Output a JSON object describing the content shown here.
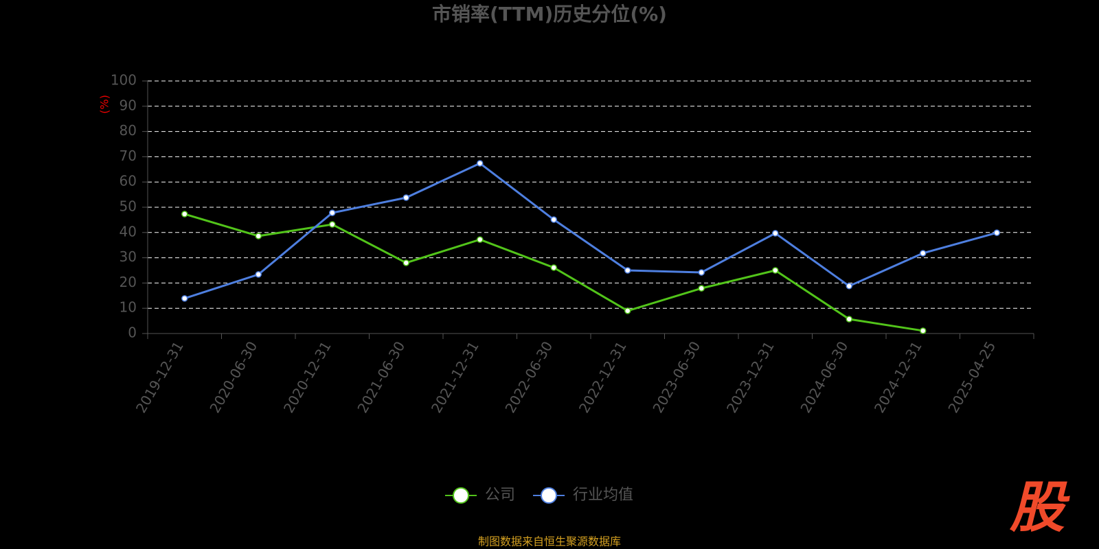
{
  "chart_data": {
    "type": "line",
    "title": "市销率(TTM)历史分位(%)",
    "y_label": "(%)",
    "categories": [
      "2019-12-31",
      "2020-06-30",
      "2020-12-31",
      "2021-06-30",
      "2021-12-31",
      "2022-06-30",
      "2022-12-31",
      "2023-06-30",
      "2023-12-31",
      "2024-06-30",
      "2024-12-31",
      "2025-04-25"
    ],
    "series": [
      {
        "name": "公司",
        "color": "#52c41a",
        "values": [
          47.3,
          38.6,
          43.2,
          28.0,
          37.2,
          26.1,
          9.0,
          17.9,
          25.0,
          5.7,
          1.1,
          null
        ]
      },
      {
        "name": "行业均值",
        "color": "#4e7fe0",
        "values": [
          13.9,
          23.4,
          47.8,
          53.8,
          67.4,
          45.1,
          25.0,
          24.2,
          39.7,
          18.8,
          31.8,
          39.9
        ]
      }
    ],
    "ylim": [
      0,
      100
    ],
    "yticks": [
      0,
      10,
      20,
      30,
      40,
      50,
      60,
      70,
      80,
      90,
      100
    ],
    "grid": true,
    "legend": "bottom",
    "source": "制图数据来自恒生聚源数据库",
    "logo": "股"
  }
}
